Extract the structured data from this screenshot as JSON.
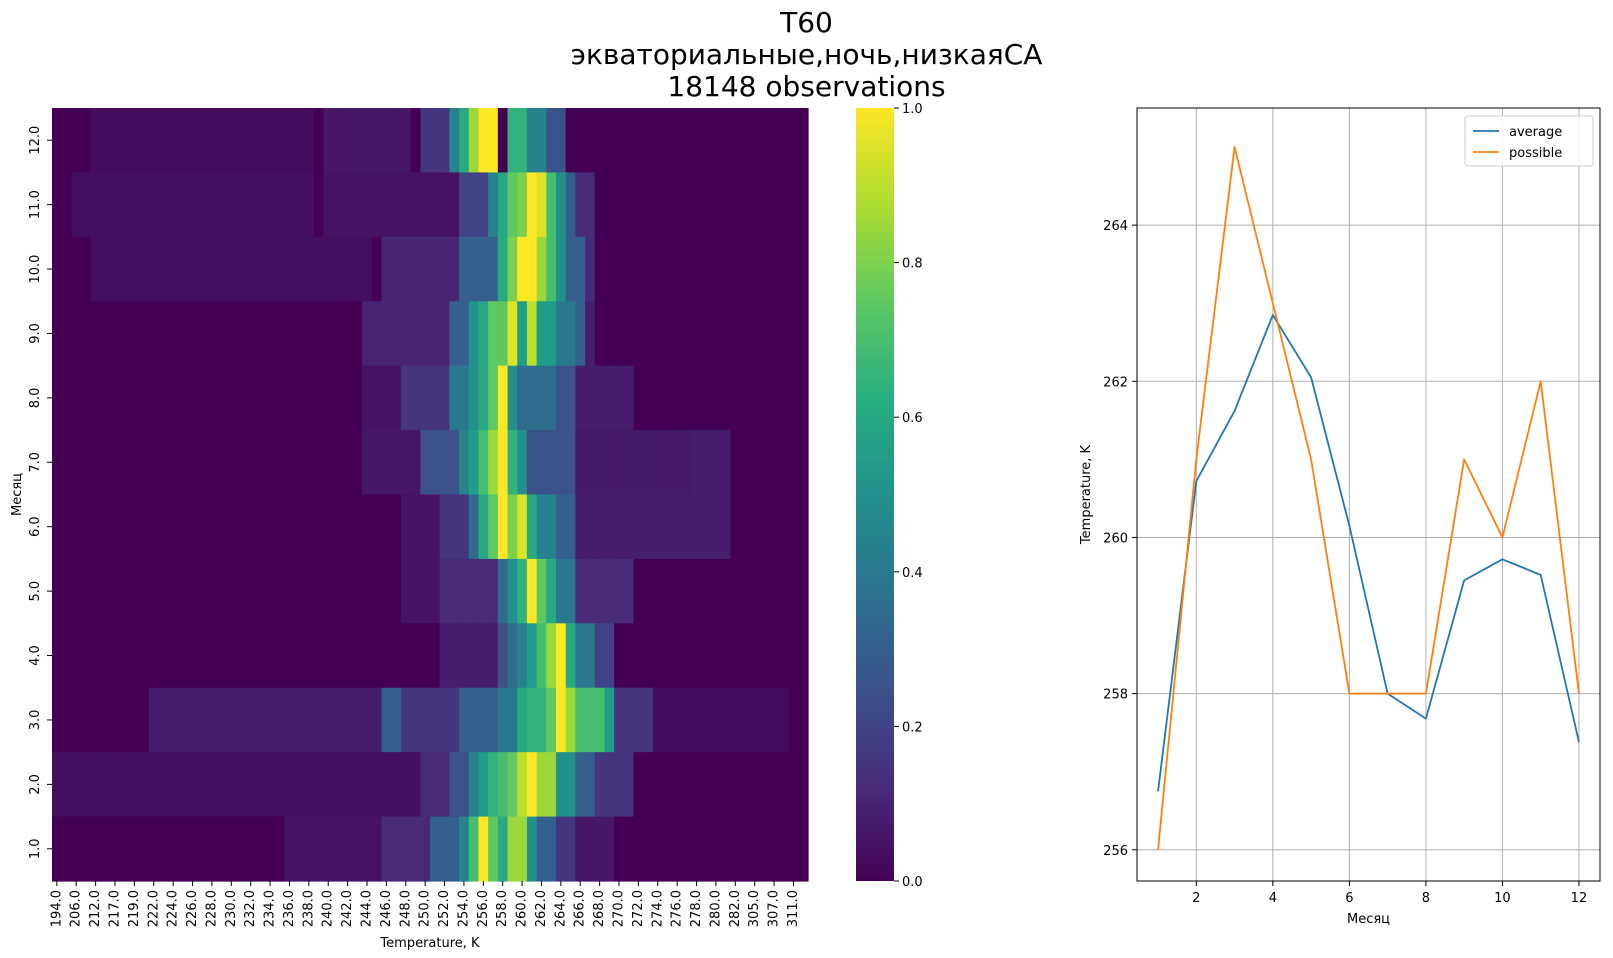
{
  "figure": {
    "title_lines": [
      "T60",
      "экваториальные,ночь,низкаяСА",
      "18148 observations"
    ]
  },
  "chart_data": [
    {
      "type": "heatmap",
      "xlabel": "Temperature, K",
      "ylabel": "Месяц",
      "x_tick_labels": [
        "194.0",
        "206.0",
        "212.0",
        "217.0",
        "219.0",
        "222.0",
        "224.0",
        "226.0",
        "228.0",
        "230.0",
        "232.0",
        "234.0",
        "236.0",
        "238.0",
        "240.0",
        "242.0",
        "244.0",
        "246.0",
        "248.0",
        "250.0",
        "252.0",
        "254.0",
        "256.0",
        "258.0",
        "260.0",
        "262.0",
        "264.0",
        "266.0",
        "268.0",
        "270.0",
        "272.0",
        "274.0",
        "276.0",
        "278.0",
        "280.0",
        "282.0",
        "305.0",
        "307.0",
        "311.0"
      ],
      "y_tick_labels": [
        "12.0",
        "11.0",
        "10.0",
        "9.0",
        "8.0",
        "7.0",
        "6.0",
        "5.0",
        "4.0",
        "3.0",
        "2.0",
        "1.0"
      ],
      "colorbar": {
        "colormap": "viridis",
        "min": 0.0,
        "max": 1.0,
        "ticks": [
          "1.0",
          "0.8",
          "0.6",
          "0.4",
          "0.2",
          "0.0"
        ]
      },
      "rows": [
        {
          "month": "12.0",
          "hot": [
            [
              256,
              258,
              1.0
            ],
            [
              255,
              256,
              0.85
            ],
            [
              254,
              255,
              0.6
            ],
            [
              259,
              261,
              0.65
            ],
            [
              253,
              254,
              0.45
            ],
            [
              261,
              263,
              0.45
            ],
            [
              250,
              253,
              0.15
            ],
            [
              263,
              265,
              0.25
            ],
            [
              240,
              249,
              0.06
            ],
            [
              212,
              239,
              0.03
            ]
          ]
        },
        {
          "month": "11.0",
          "hot": [
            [
              261,
              262,
              1.0
            ],
            [
              262,
              263,
              0.95
            ],
            [
              260,
              261,
              0.8
            ],
            [
              259,
              260,
              0.75
            ],
            [
              263,
              264,
              0.7
            ],
            [
              258,
              259,
              0.6
            ],
            [
              264,
              265,
              0.5
            ],
            [
              257,
              258,
              0.45
            ],
            [
              265,
              266,
              0.3
            ],
            [
              254,
              257,
              0.2
            ],
            [
              266,
              268,
              0.12
            ],
            [
              240,
              254,
              0.05
            ],
            [
              206,
              239,
              0.04
            ]
          ]
        },
        {
          "month": "10.0",
          "hot": [
            [
              260,
              262,
              1.0
            ],
            [
              262,
              263,
              0.85
            ],
            [
              259,
              260,
              0.8
            ],
            [
              263,
              264,
              0.7
            ],
            [
              258,
              259,
              0.6
            ],
            [
              264,
              265,
              0.5
            ],
            [
              254,
              258,
              0.3
            ],
            [
              265,
              267,
              0.3
            ],
            [
              267,
              268,
              0.12
            ],
            [
              246,
              254,
              0.1
            ],
            [
              212,
              245,
              0.04
            ]
          ]
        },
        {
          "month": "9.0",
          "hot": [
            [
              257,
              259,
              0.75
            ],
            [
              259,
              260,
              0.95
            ],
            [
              260,
              261,
              0.55
            ],
            [
              261,
              262,
              0.9
            ],
            [
              256,
              257,
              0.6
            ],
            [
              262,
              264,
              0.55
            ],
            [
              255,
              256,
              0.5
            ],
            [
              264,
              266,
              0.4
            ],
            [
              266,
              267,
              0.3
            ],
            [
              253,
              255,
              0.3
            ],
            [
              244,
              253,
              0.1
            ],
            [
              267,
              268,
              0.08
            ]
          ]
        },
        {
          "month": "8.0",
          "hot": [
            [
              258,
              259,
              1.0
            ],
            [
              257,
              258,
              0.75
            ],
            [
              256,
              257,
              0.6
            ],
            [
              255,
              256,
              0.5
            ],
            [
              259,
              260,
              0.5
            ],
            [
              260,
              264,
              0.35
            ],
            [
              253,
              255,
              0.4
            ],
            [
              264,
              266,
              0.25
            ],
            [
              248,
              253,
              0.15
            ],
            [
              266,
              272,
              0.08
            ],
            [
              244,
              248,
              0.05
            ]
          ]
        },
        {
          "month": "7.0",
          "hot": [
            [
              258,
              259,
              1.0
            ],
            [
              257,
              258,
              0.85
            ],
            [
              256,
              257,
              0.7
            ],
            [
              259,
              260,
              0.65
            ],
            [
              255,
              256,
              0.55
            ],
            [
              260,
              261,
              0.5
            ],
            [
              254,
              255,
              0.45
            ],
            [
              261,
              266,
              0.25
            ],
            [
              250,
              254,
              0.25
            ],
            [
              266,
              278,
              0.07
            ],
            [
              244,
              250,
              0.06
            ],
            [
              278,
              282,
              0.08
            ]
          ]
        },
        {
          "month": "6.0",
          "hot": [
            [
              258,
              259,
              1.0
            ],
            [
              260,
              261,
              0.95
            ],
            [
              259,
              260,
              0.8
            ],
            [
              261,
              262,
              0.6
            ],
            [
              257,
              258,
              0.75
            ],
            [
              256,
              257,
              0.6
            ],
            [
              262,
              264,
              0.45
            ],
            [
              255,
              256,
              0.35
            ],
            [
              264,
              266,
              0.3
            ],
            [
              252,
              255,
              0.15
            ],
            [
              266,
              282,
              0.08
            ],
            [
              248,
              252,
              0.05
            ]
          ]
        },
        {
          "month": "5.0",
          "hot": [
            [
              261,
              262,
              1.0
            ],
            [
              262,
              263,
              0.75
            ],
            [
              260,
              261,
              0.65
            ],
            [
              263,
              264,
              0.6
            ],
            [
              259,
              260,
              0.5
            ],
            [
              264,
              266,
              0.4
            ],
            [
              258,
              259,
              0.35
            ],
            [
              252,
              258,
              0.12
            ],
            [
              266,
              272,
              0.12
            ],
            [
              248,
              252,
              0.05
            ]
          ]
        },
        {
          "month": "4.0",
          "hot": [
            [
              264,
              265,
              1.0
            ],
            [
              263,
              264,
              0.85
            ],
            [
              262,
              263,
              0.7
            ],
            [
              265,
              266,
              0.6
            ],
            [
              261,
              262,
              0.55
            ],
            [
              260,
              261,
              0.45
            ],
            [
              266,
              268,
              0.4
            ],
            [
              259,
              260,
              0.35
            ],
            [
              258,
              259,
              0.25
            ],
            [
              268,
              270,
              0.2
            ],
            [
              252,
              258,
              0.08
            ]
          ]
        },
        {
          "month": "3.0",
          "hot": [
            [
              264,
              265,
              1.0
            ],
            [
              265,
              266,
              0.85
            ],
            [
              263,
              264,
              0.75
            ],
            [
              266,
              269,
              0.7
            ],
            [
              261,
              263,
              0.65
            ],
            [
              260,
              261,
              0.6
            ],
            [
              269,
              270,
              0.55
            ],
            [
              258,
              260,
              0.4
            ],
            [
              254,
              258,
              0.3
            ],
            [
              270,
              274,
              0.15
            ],
            [
              246,
              248,
              0.3
            ],
            [
              248,
              254,
              0.15
            ],
            [
              222,
              246,
              0.08
            ],
            [
              274,
              311,
              0.03
            ]
          ]
        },
        {
          "month": "2.0",
          "hot": [
            [
              261,
              262,
              1.0
            ],
            [
              260,
              261,
              0.9
            ],
            [
              262,
              264,
              0.85
            ],
            [
              259,
              260,
              0.75
            ],
            [
              258,
              259,
              0.7
            ],
            [
              257,
              258,
              0.65
            ],
            [
              264,
              266,
              0.5
            ],
            [
              256,
              257,
              0.55
            ],
            [
              255,
              256,
              0.45
            ],
            [
              266,
              268,
              0.3
            ],
            [
              253,
              255,
              0.25
            ],
            [
              268,
              272,
              0.15
            ],
            [
              250,
              253,
              0.12
            ],
            [
              194,
              250,
              0.04
            ]
          ]
        },
        {
          "month": "1.0",
          "hot": [
            [
              256,
              257,
              1.0
            ],
            [
              259,
              261,
              0.85
            ],
            [
              257,
              258,
              0.75
            ],
            [
              255,
              256,
              0.7
            ],
            [
              258,
              259,
              0.6
            ],
            [
              261,
              262,
              0.5
            ],
            [
              254,
              255,
              0.45
            ],
            [
              262,
              264,
              0.3
            ],
            [
              251,
              254,
              0.3
            ],
            [
              264,
              266,
              0.15
            ],
            [
              246,
              251,
              0.12
            ],
            [
              236,
              246,
              0.05
            ],
            [
              266,
              270,
              0.06
            ]
          ]
        }
      ]
    },
    {
      "type": "line",
      "xlabel": "Месяц",
      "ylabel": "Temperature, K",
      "x": [
        1,
        2,
        3,
        4,
        5,
        6,
        7,
        8,
        9,
        10,
        11,
        12
      ],
      "xlim": [
        0.45,
        12.55
      ],
      "ylim": [
        255.6,
        265.5
      ],
      "xticks": [
        2,
        4,
        6,
        8,
        10,
        12
      ],
      "yticks": [
        256,
        258,
        260,
        262,
        264
      ],
      "grid": true,
      "legend_position": "top-right",
      "series": [
        {
          "name": "average",
          "color": "#1f77b4",
          "values": [
            256.75,
            260.72,
            261.62,
            262.85,
            262.05,
            260.15,
            258.0,
            257.68,
            259.45,
            259.72,
            259.52,
            257.38
          ]
        },
        {
          "name": "possible",
          "color": "#ff7f0e",
          "values": [
            256.0,
            261.0,
            265.0,
            263.0,
            261.0,
            258.0,
            258.0,
            258.0,
            261.0,
            260.0,
            262.0,
            258.0
          ]
        }
      ]
    }
  ]
}
